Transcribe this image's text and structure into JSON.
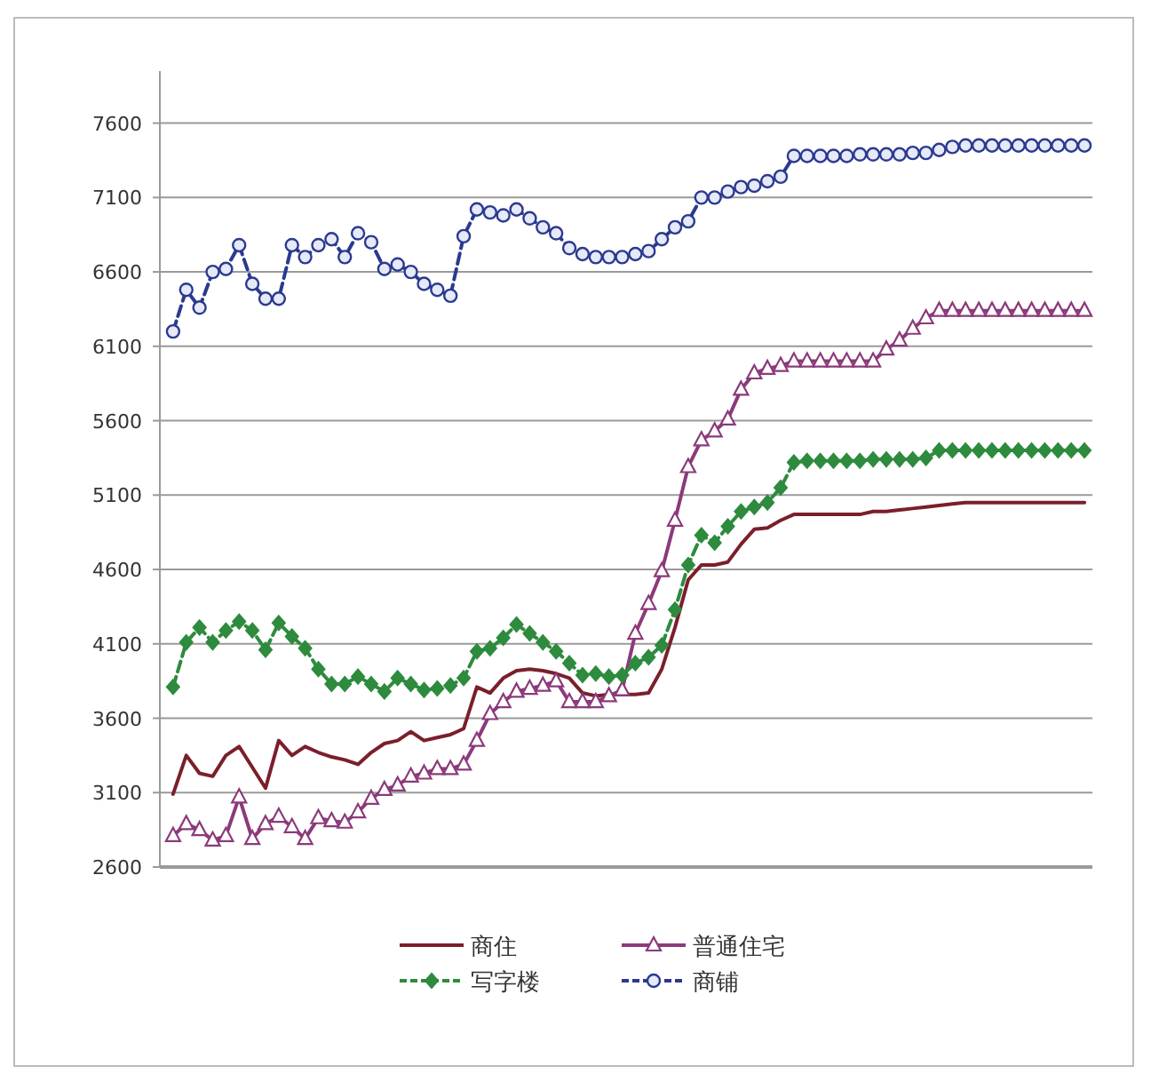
{
  "chart_data": {
    "type": "line",
    "categories": [
      null,
      null,
      null,
      null,
      null,
      null,
      null,
      null,
      null,
      null,
      null,
      null,
      null,
      null,
      null,
      null,
      null,
      null,
      null,
      null,
      null,
      null,
      null,
      null,
      null,
      null,
      null,
      null,
      null,
      null,
      null,
      null,
      null,
      null,
      null,
      null,
      null,
      null,
      null,
      null,
      null,
      null,
      null,
      null,
      null,
      null,
      null,
      null,
      null,
      null,
      null,
      null,
      null,
      null,
      null,
      null,
      null,
      null,
      null,
      null,
      null,
      null,
      null,
      null,
      null,
      null,
      null,
      null,
      null,
      null
    ],
    "ylim": [
      2600,
      7950
    ],
    "yticks": [
      2600,
      3100,
      3600,
      4100,
      4600,
      5100,
      5600,
      6100,
      6600,
      7100,
      7600
    ],
    "grid": "y",
    "legend": "bottom",
    "series": [
      {
        "name": "商住",
        "color": "#7b1f2b",
        "marker": "none",
        "line_style": "solid",
        "values": [
          3090,
          3350,
          3230,
          3210,
          3350,
          3410,
          3270,
          3130,
          3450,
          3350,
          3410,
          3370,
          3340,
          3320,
          3290,
          3370,
          3430,
          3450,
          3510,
          3450,
          3470,
          3490,
          3530,
          3810,
          3770,
          3870,
          3920,
          3930,
          3920,
          3900,
          3870,
          3770,
          3750,
          3760,
          3760,
          3760,
          3770,
          3930,
          4210,
          4530,
          4630,
          4630,
          4650,
          4770,
          4870,
          4880,
          4930,
          4970,
          4970,
          4970,
          4970,
          4970,
          4970,
          4990,
          4990,
          5000,
          5010,
          5020,
          5030,
          5040,
          5050,
          5050,
          5050,
          5050,
          5050,
          5050,
          5050,
          5050,
          5050,
          5050
        ]
      },
      {
        "name": "普通住宅",
        "color": "#8b3a7a",
        "marker": "triangle",
        "line_style": "solid",
        "values": [
          2810,
          2890,
          2850,
          2780,
          2810,
          3070,
          2790,
          2890,
          2940,
          2870,
          2790,
          2930,
          2910,
          2900,
          2970,
          3060,
          3120,
          3150,
          3210,
          3230,
          3260,
          3260,
          3290,
          3450,
          3630,
          3710,
          3780,
          3800,
          3820,
          3850,
          3710,
          3710,
          3710,
          3750,
          3790,
          4170,
          4370,
          4590,
          4930,
          5290,
          5470,
          5530,
          5610,
          5810,
          5920,
          5950,
          5970,
          6000,
          6000,
          6000,
          6000,
          6000,
          6000,
          6000,
          6080,
          6140,
          6220,
          6290,
          6340,
          6340,
          6340,
          6340,
          6340,
          6340,
          6340,
          6340,
          6340,
          6340,
          6340,
          6340
        ]
      },
      {
        "name": "写字楼",
        "color": "#2e8b3e",
        "marker": "diamond",
        "line_style": "dashed",
        "values": [
          3810,
          4110,
          4210,
          4110,
          4190,
          4250,
          4190,
          4060,
          4240,
          4150,
          4070,
          3930,
          3830,
          3830,
          3880,
          3830,
          3780,
          3870,
          3830,
          3790,
          3800,
          3820,
          3870,
          4050,
          4070,
          4140,
          4230,
          4170,
          4110,
          4050,
          3970,
          3890,
          3900,
          3880,
          3890,
          3970,
          4010,
          4090,
          4330,
          4630,
          4830,
          4780,
          4890,
          4990,
          5020,
          5050,
          5150,
          5320,
          5330,
          5330,
          5330,
          5330,
          5330,
          5340,
          5340,
          5340,
          5340,
          5350,
          5400,
          5400,
          5400,
          5400,
          5400,
          5400,
          5400,
          5400,
          5400,
          5400,
          5400,
          5400
        ]
      },
      {
        "name": "商铺",
        "color": "#2b3a8f",
        "marker": "circle",
        "line_style": "dashed",
        "values": [
          6200,
          6480,
          6360,
          6600,
          6620,
          6780,
          6520,
          6420,
          6420,
          6780,
          6700,
          6780,
          6820,
          6700,
          6860,
          6800,
          6620,
          6650,
          6600,
          6520,
          6480,
          6440,
          6840,
          7020,
          7000,
          6980,
          7020,
          6960,
          6900,
          6860,
          6760,
          6720,
          6700,
          6700,
          6700,
          6720,
          6740,
          6820,
          6900,
          6940,
          7100,
          7100,
          7140,
          7170,
          7180,
          7210,
          7240,
          7380,
          7380,
          7380,
          7380,
          7380,
          7390,
          7390,
          7390,
          7390,
          7400,
          7400,
          7420,
          7440,
          7450,
          7450,
          7450,
          7450,
          7450,
          7450,
          7450,
          7450,
          7450,
          7450
        ]
      }
    ]
  }
}
